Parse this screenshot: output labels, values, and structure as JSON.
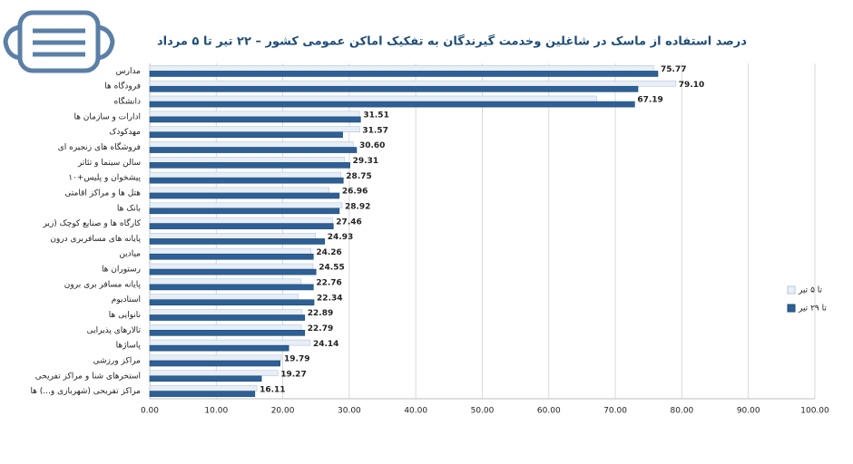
{
  "chart_data": {
    "type": "hbar",
    "title": "درصد استفاده از ماسک در شاغلین وخدمت گیرندگان به تفکیک اماکن عمومی کشور – ۲۲ تیر تا ۵ مرداد",
    "categories": [
      "مدارس",
      "فرودگاه ها",
      "دانشگاه",
      "ادارات و سازمان ها",
      "مهدکودک",
      "فروشگاه های زنجیره ای",
      "سالن سینما و تئاتر",
      "پیشخوان و پلیس+۱۰",
      "هتل ها و مراکز اقامتی",
      "بانک ها",
      "کارگاه ها و صنایع کوچک (زیر",
      "پایانه های مسافربری درون",
      "میادین",
      "رستوران ها",
      "پایانه مسافر بری برون",
      "استادیوم",
      "نانوایی ها",
      "تالارهای پذیرایی",
      "پاساژها",
      "مراکز ورزشی",
      "استخرهای شنا و مراکز تفریحی",
      "مراکز تفریحی (شهربازی و...) ها"
    ],
    "series": [
      {
        "name": "تا ۵ تیر",
        "color": "#e8eef6",
        "values": [
          75.77,
          79.1,
          67.19,
          31.51,
          31.57,
          30.6,
          29.31,
          28.75,
          26.96,
          28.92,
          27.46,
          24.93,
          24.26,
          24.55,
          22.76,
          22.34,
          22.89,
          22.79,
          24.14,
          19.79,
          19.27,
          16.11
        ],
        "value_labels": [
          "75.77",
          "79.10",
          "67.19",
          "31.51",
          "31.57",
          "30.60",
          "29.31",
          "28.75",
          "26.96",
          "28.92",
          "27.46",
          "24.93",
          "24.26",
          "24.55",
          "22.76",
          "22.34",
          "22.89",
          "22.79",
          "24.14",
          "19.79",
          "19.27",
          "16.11"
        ]
      },
      {
        "name": "تا ۲۹ تیر",
        "color": "#2e5f95",
        "values": [
          76.4,
          73.4,
          72.9,
          31.7,
          29.0,
          31.1,
          30.1,
          29.1,
          28.5,
          28.5,
          27.6,
          26.3,
          24.6,
          25.0,
          24.6,
          24.7,
          23.3,
          23.3,
          20.9,
          19.6,
          16.8,
          15.8
        ]
      }
    ],
    "xlim": [
      0,
      100
    ],
    "xticks": [
      {
        "value": 0,
        "label": "0.00"
      },
      {
        "value": 10,
        "label": "10.00"
      },
      {
        "value": 20,
        "label": "20.00"
      },
      {
        "value": 30,
        "label": "30.00"
      },
      {
        "value": 40,
        "label": "40.00"
      },
      {
        "value": 50,
        "label": "50.00"
      },
      {
        "value": 60,
        "label": "60.00"
      },
      {
        "value": 70,
        "label": "70.00"
      },
      {
        "value": 80,
        "label": "80.00"
      },
      {
        "value": 90,
        "label": "90.00"
      },
      {
        "value": 100,
        "label": "100.00"
      }
    ],
    "grid": true,
    "legend": "right"
  }
}
